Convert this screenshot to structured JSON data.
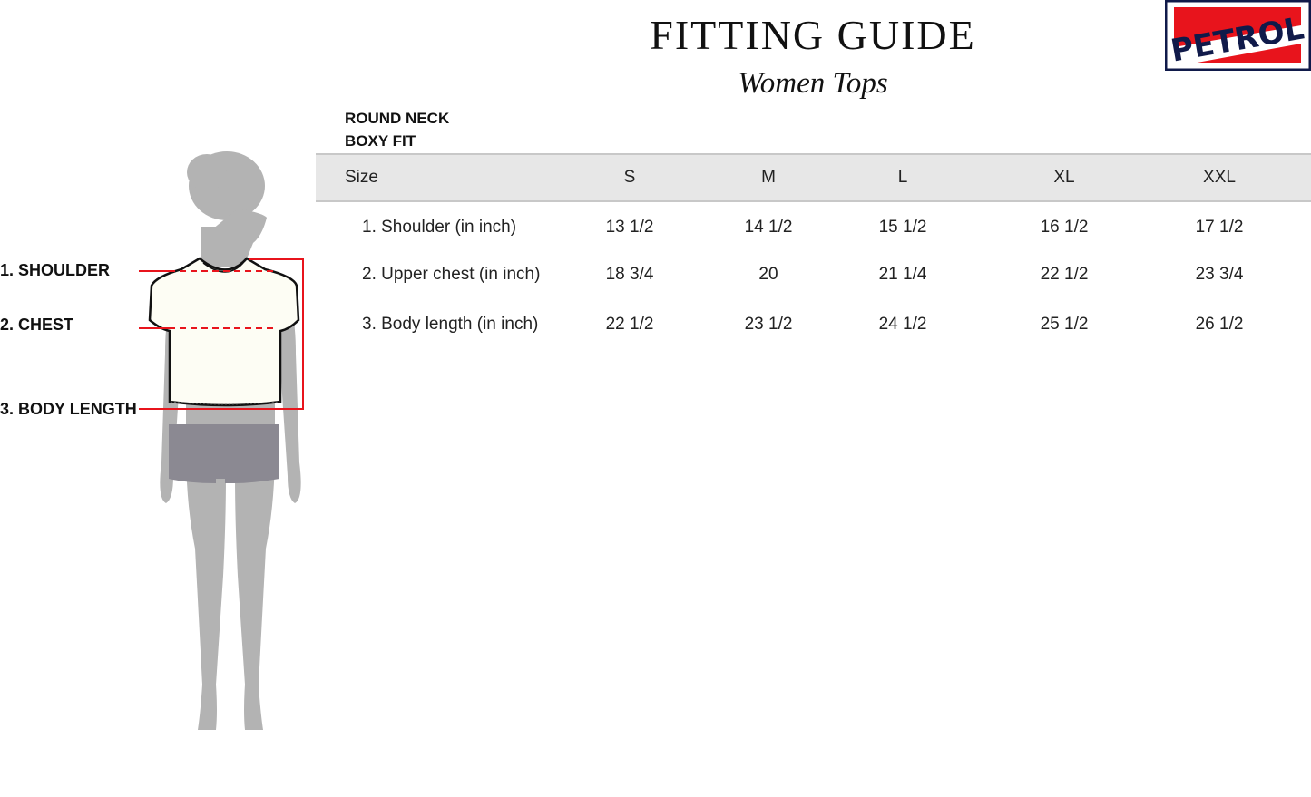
{
  "header": {
    "title": "FITTING GUIDE",
    "subtitle": "Women Tops",
    "logo_text": "PETROL"
  },
  "style": [
    "ROUND NECK",
    "BOXY FIT"
  ],
  "table": {
    "header_label": "Size",
    "sizes": [
      "S",
      "M",
      "L",
      "XL",
      "XXL"
    ],
    "rows": [
      {
        "label": "1. Shoulder (in inch)",
        "values": [
          "13 1/2",
          "14 1/2",
          "15 1/2",
          "16 1/2",
          "17 1/2"
        ]
      },
      {
        "label": "2. Upper chest (in inch)",
        "values": [
          "18 3/4",
          "20",
          "21 1/4",
          "22 1/2",
          "23 3/4"
        ]
      },
      {
        "label": "3. Body length (in inch)",
        "values": [
          "22 1/2",
          "23 1/2",
          "24 1/2",
          "25 1/2",
          "26 1/2"
        ]
      }
    ]
  },
  "figure": {
    "labels": [
      "1. SHOULDER",
      "2. CHEST",
      "3. BODY LENGTH"
    ]
  },
  "colors": {
    "measure_line": "#e8141c",
    "logo_red": "#e8141c",
    "logo_navy": "#101a4a",
    "silhouette": "#b3b3b3",
    "header_band": "#e7e7e7"
  }
}
